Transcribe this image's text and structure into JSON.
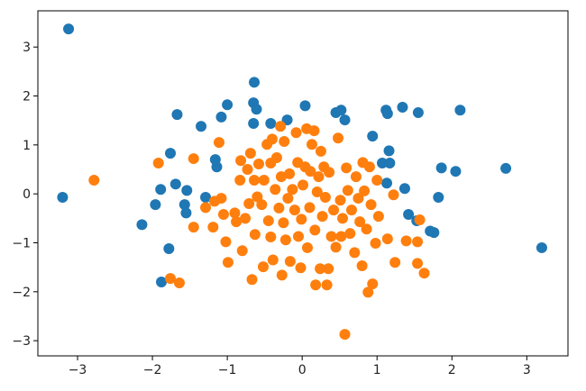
{
  "chart_data": {
    "type": "scatter",
    "xlim": [
      -3.53,
      3.55
    ],
    "ylim": [
      -3.31,
      3.74
    ],
    "xticks": [
      {
        "value": -3,
        "label": "−3"
      },
      {
        "value": -2,
        "label": "−2"
      },
      {
        "value": -1,
        "label": "−1"
      },
      0,
      1,
      2,
      3
    ],
    "yticks": [
      {
        "value": -3,
        "label": "−3"
      },
      {
        "value": -2,
        "label": "−2"
      },
      {
        "value": -1,
        "label": "−1"
      },
      0,
      1,
      2,
      3
    ],
    "series": [
      {
        "color": "#1f77b4",
        "x": [
          -3.12,
          -3.2,
          -2.14,
          -1.78,
          -1.88,
          -1.96,
          -1.89,
          -1.76,
          -1.67,
          -1.69,
          -1.57,
          -1.55,
          -1.54,
          -1.35,
          -1.29,
          -1.16,
          -1.14,
          -1.08,
          -1.0,
          -0.64,
          -0.65,
          -0.61,
          -0.65,
          -0.42,
          -0.2,
          0.04,
          0.45,
          0.52,
          0.57,
          0.94,
          1.12,
          1.14,
          1.34,
          1.55,
          2.11,
          1.16,
          1.07,
          1.17,
          1.13,
          1.37,
          1.42,
          1.53,
          1.86,
          2.05,
          1.82,
          1.71,
          1.76,
          2.72,
          3.2
        ],
        "values": [
          3.37,
          -0.07,
          -0.63,
          -1.12,
          -1.8,
          -0.22,
          0.09,
          0.83,
          1.62,
          0.2,
          -0.22,
          -0.39,
          0.07,
          1.38,
          -0.07,
          0.7,
          0.55,
          1.57,
          1.82,
          2.28,
          1.86,
          1.73,
          1.44,
          1.44,
          1.51,
          1.8,
          1.66,
          1.71,
          1.51,
          1.18,
          1.71,
          1.64,
          1.77,
          1.66,
          1.71,
          0.88,
          0.63,
          0.63,
          0.22,
          0.11,
          -0.42,
          -0.55,
          0.53,
          0.46,
          -0.07,
          -0.76,
          -0.79,
          0.52,
          -1.1
        ]
      },
      {
        "color": "#ff7f0e",
        "x": [
          -2.78,
          -1.92,
          -1.76,
          -1.64,
          -1.45,
          -1.45,
          -1.29,
          -1.19,
          -1.17,
          -1.11,
          -1.08,
          -1.05,
          -1.02,
          -0.99,
          -0.9,
          -0.88,
          -0.83,
          -0.82,
          -0.8,
          -0.76,
          -0.73,
          -0.71,
          -0.69,
          -0.67,
          -0.64,
          -0.63,
          -0.6,
          -0.58,
          -0.54,
          -0.52,
          -0.51,
          -0.47,
          -0.45,
          -0.42,
          -0.42,
          -0.4,
          -0.39,
          -0.36,
          -0.34,
          -0.31,
          -0.29,
          -0.28,
          -0.27,
          -0.25,
          -0.24,
          -0.22,
          -0.19,
          -0.17,
          -0.16,
          -0.13,
          -0.1,
          -0.08,
          -0.06,
          -0.05,
          -0.02,
          -0.01,
          0.01,
          0.04,
          0.06,
          0.07,
          0.1,
          0.11,
          0.13,
          0.16,
          0.17,
          0.18,
          0.2,
          0.22,
          0.24,
          0.25,
          0.27,
          0.29,
          0.31,
          0.33,
          0.35,
          0.36,
          0.39,
          0.42,
          0.45,
          0.48,
          0.51,
          0.52,
          0.54,
          0.57,
          0.59,
          0.61,
          0.64,
          0.66,
          0.7,
          0.72,
          0.75,
          0.77,
          0.8,
          0.81,
          0.83,
          0.86,
          0.88,
          0.9,
          0.92,
          0.94,
          0.98,
          1.0,
          1.02,
          1.14,
          1.22,
          1.24,
          1.39,
          1.54,
          1.54,
          1.57,
          1.63
        ],
        "values": [
          0.28,
          0.63,
          -1.73,
          -1.82,
          0.72,
          -0.68,
          -0.28,
          -0.68,
          -0.15,
          1.05,
          -0.09,
          -0.42,
          -0.98,
          -1.4,
          -0.39,
          -0.57,
          0.28,
          0.68,
          -1.16,
          -0.5,
          0.5,
          -0.2,
          0.83,
          -1.75,
          0.28,
          -0.83,
          -0.06,
          0.61,
          -0.22,
          -1.49,
          0.28,
          1.01,
          -0.55,
          0.63,
          -0.88,
          1.12,
          -1.35,
          0.09,
          0.74,
          -0.29,
          1.38,
          0.35,
          -1.66,
          -0.59,
          1.07,
          -0.94,
          -0.09,
          0.41,
          -1.38,
          0.09,
          -0.33,
          1.25,
          0.64,
          -0.87,
          -1.51,
          -0.52,
          0.18,
          0.55,
          1.33,
          -1.1,
          -0.28,
          0.46,
          1.01,
          1.29,
          -0.74,
          -1.86,
          0.04,
          0.35,
          -1.53,
          0.87,
          -0.46,
          0.55,
          -0.07,
          -1.86,
          -1.53,
          0.44,
          -0.87,
          -0.33,
          -1.09,
          1.14,
          -0.13,
          -0.87,
          -0.5,
          -2.87,
          0.53,
          0.07,
          -0.81,
          -0.33,
          -1.2,
          0.35,
          -0.09,
          -0.57,
          -1.47,
          0.64,
          0.06,
          -0.72,
          -2.01,
          0.55,
          -0.22,
          -1.84,
          -1.01,
          0.28,
          -0.46,
          -0.92,
          -0.02,
          -1.4,
          -0.96,
          -1.42,
          -0.98,
          -0.53,
          -1.62
        ]
      }
    ]
  }
}
